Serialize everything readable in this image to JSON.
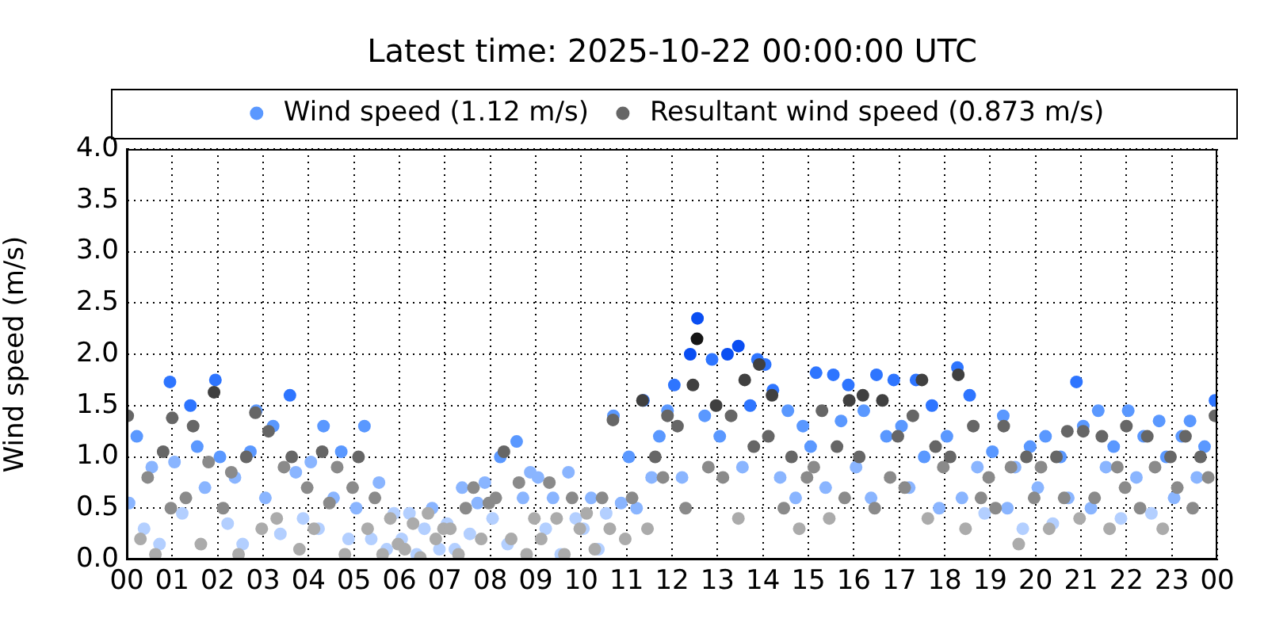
{
  "chart_data": {
    "type": "scatter",
    "title": "Latest time: 2025-10-22 00:00:00 UTC",
    "ylabel": "Wind speed (m/s)",
    "legend": "top",
    "grid": true,
    "marker": "circle",
    "xlim": [
      0,
      24
    ],
    "xticks": [
      {
        "value": 0,
        "label": "00"
      },
      {
        "value": 1,
        "label": "01"
      },
      {
        "value": 2,
        "label": "02"
      },
      {
        "value": 3,
        "label": "03"
      },
      {
        "value": 4,
        "label": "04"
      },
      {
        "value": 5,
        "label": "05"
      },
      {
        "value": 6,
        "label": "06"
      },
      {
        "value": 7,
        "label": "07"
      },
      {
        "value": 8,
        "label": "08"
      },
      {
        "value": 9,
        "label": "09"
      },
      10,
      11,
      12,
      13,
      14,
      15,
      16,
      17,
      18,
      19,
      20,
      21,
      22,
      23,
      {
        "value": 24,
        "label": "00"
      }
    ],
    "ylim": [
      0,
      4
    ],
    "yticks": [
      {
        "value": 0,
        "label": "0.0"
      },
      0.5,
      {
        "value": 1,
        "label": "1.0"
      },
      1.5,
      {
        "value": 2,
        "label": "2.0"
      },
      2.5,
      {
        "value": 3,
        "label": "3.0"
      },
      3.5,
      {
        "value": 4,
        "label": "4.0"
      }
    ],
    "series": [
      {
        "name": "Wind speed (1.12 m/s)",
        "color": "#5a98ff",
        "x": [
          0.05,
          0.22,
          0.38,
          0.55,
          0.72,
          0.95,
          1.05,
          1.22,
          1.4,
          1.55,
          1.72,
          1.95,
          2.05,
          2.22,
          2.38,
          2.55,
          2.72,
          2.85,
          3.05,
          3.22,
          3.38,
          3.59,
          3.72,
          3.88,
          4.05,
          4.22,
          4.33,
          4.55,
          4.72,
          4.88,
          5.05,
          5.23,
          5.38,
          5.55,
          5.72,
          5.88,
          6.05,
          6.22,
          6.38,
          6.55,
          6.72,
          6.88,
          7.05,
          7.22,
          7.38,
          7.55,
          7.72,
          7.88,
          8.05,
          8.22,
          8.38,
          8.58,
          8.72,
          8.88,
          9.05,
          9.22,
          9.38,
          9.55,
          9.72,
          9.88,
          10.05,
          10.22,
          10.38,
          10.55,
          10.71,
          10.88,
          11.05,
          11.22,
          11.37,
          11.55,
          11.72,
          11.9,
          12.05,
          12.22,
          12.4,
          12.56,
          12.72,
          12.88,
          13.05,
          13.22,
          13.46,
          13.55,
          13.72,
          13.88,
          14.05,
          14.22,
          14.38,
          14.55,
          14.72,
          14.88,
          15.05,
          15.17,
          15.38,
          15.55,
          15.72,
          15.88,
          16.05,
          16.22,
          16.38,
          16.5,
          16.72,
          16.88,
          17.05,
          17.22,
          17.37,
          17.55,
          17.72,
          17.88,
          18.05,
          18.28,
          18.38,
          18.55,
          18.72,
          18.88,
          19.05,
          19.29,
          19.38,
          19.55,
          19.72,
          19.88,
          20.05,
          20.22,
          20.38,
          20.55,
          20.72,
          20.9,
          21.05,
          21.22,
          21.38,
          21.55,
          21.72,
          21.88,
          22.04,
          22.22,
          22.38,
          22.55,
          22.72,
          22.88,
          23.05,
          23.22,
          23.4,
          23.55,
          23.72,
          23.95
        ],
        "values": [
          0.55,
          1.2,
          0.3,
          0.9,
          0.15,
          1.73,
          0.95,
          0.45,
          1.5,
          1.1,
          0.7,
          1.75,
          1.0,
          0.35,
          0.8,
          0.15,
          1.05,
          1.45,
          0.6,
          1.3,
          0.25,
          1.6,
          0.85,
          0.4,
          0.95,
          0.3,
          1.3,
          0.6,
          1.05,
          0.2,
          0.5,
          1.3,
          0.2,
          0.75,
          0.1,
          0.45,
          0.2,
          0.45,
          0.05,
          0.3,
          0.5,
          0.1,
          0.35,
          0.1,
          0.7,
          0.25,
          0.55,
          0.75,
          0.4,
          1.0,
          0.15,
          1.15,
          0.6,
          0.85,
          0.8,
          0.3,
          0.6,
          0.05,
          0.85,
          0.4,
          0.3,
          0.6,
          0.1,
          0.45,
          1.4,
          0.55,
          1.0,
          0.5,
          1.55,
          0.8,
          1.2,
          1.45,
          1.7,
          0.8,
          2.0,
          2.35,
          1.4,
          1.95,
          1.2,
          2.0,
          2.08,
          0.9,
          1.5,
          1.95,
          1.9,
          1.65,
          0.8,
          1.45,
          0.6,
          1.3,
          1.1,
          1.82,
          0.7,
          1.8,
          1.35,
          1.7,
          0.9,
          1.45,
          0.6,
          1.8,
          1.2,
          1.75,
          1.3,
          0.7,
          1.75,
          1.0,
          1.5,
          0.5,
          1.2,
          1.87,
          0.6,
          1.6,
          0.9,
          0.45,
          1.05,
          1.4,
          0.5,
          0.9,
          0.3,
          1.1,
          0.7,
          1.2,
          0.35,
          1.0,
          0.6,
          1.73,
          1.3,
          0.5,
          1.45,
          0.9,
          1.1,
          0.4,
          1.45,
          0.8,
          1.2,
          0.45,
          1.35,
          1.0,
          0.6,
          1.2,
          1.35,
          0.8,
          1.1,
          1.55
        ],
        "colors": [
          "#8ab5ff",
          "#5a98ff",
          "#b3cfff",
          "#8ab5ff",
          "#b3cfff",
          "#2e75ff",
          "#8ab5ff",
          "#b3cfff",
          "#2e75ff",
          "#5a98ff",
          "#8ab5ff",
          "#2e75ff",
          "#5a98ff",
          "#b3cfff",
          "#8ab5ff",
          "#b3cfff",
          "#5a98ff",
          "#5a98ff",
          "#8ab5ff",
          "#5a98ff",
          "#b3cfff",
          "#2e75ff",
          "#8ab5ff",
          "#b3cfff",
          "#8ab5ff",
          "#b3cfff",
          "#5a98ff",
          "#8ab5ff",
          "#5a98ff",
          "#b3cfff",
          "#8ab5ff",
          "#5a98ff",
          "#b3cfff",
          "#8ab5ff",
          "#b3cfff",
          "#b3cfff",
          "#b3cfff",
          "#b3cfff",
          "#b3cfff",
          "#b3cfff",
          "#8ab5ff",
          "#b3cfff",
          "#b3cfff",
          "#b3cfff",
          "#8ab5ff",
          "#b3cfff",
          "#8ab5ff",
          "#8ab5ff",
          "#b3cfff",
          "#5a98ff",
          "#b3cfff",
          "#5a98ff",
          "#8ab5ff",
          "#8ab5ff",
          "#8ab5ff",
          "#b3cfff",
          "#8ab5ff",
          "#b3cfff",
          "#8ab5ff",
          "#b3cfff",
          "#b3cfff",
          "#8ab5ff",
          "#b3cfff",
          "#b3cfff",
          "#5a98ff",
          "#8ab5ff",
          "#5a98ff",
          "#8ab5ff",
          "#2e75ff",
          "#8ab5ff",
          "#5a98ff",
          "#5a98ff",
          "#2e75ff",
          "#8ab5ff",
          "#0a4ef2",
          "#0a4ef2",
          "#5a98ff",
          "#2e75ff",
          "#5a98ff",
          "#0a4ef2",
          "#0a4ef2",
          "#8ab5ff",
          "#2e75ff",
          "#2e75ff",
          "#2e75ff",
          "#2e75ff",
          "#8ab5ff",
          "#5a98ff",
          "#8ab5ff",
          "#5a98ff",
          "#5a98ff",
          "#2e75ff",
          "#8ab5ff",
          "#2e75ff",
          "#5a98ff",
          "#2e75ff",
          "#8ab5ff",
          "#5a98ff",
          "#8ab5ff",
          "#2e75ff",
          "#5a98ff",
          "#2e75ff",
          "#5a98ff",
          "#8ab5ff",
          "#2e75ff",
          "#5a98ff",
          "#2e75ff",
          "#8ab5ff",
          "#5a98ff",
          "#2e75ff",
          "#8ab5ff",
          "#2e75ff",
          "#8ab5ff",
          "#b3cfff",
          "#5a98ff",
          "#5a98ff",
          "#8ab5ff",
          "#8ab5ff",
          "#b3cfff",
          "#5a98ff",
          "#8ab5ff",
          "#5a98ff",
          "#b3cfff",
          "#5a98ff",
          "#8ab5ff",
          "#2e75ff",
          "#5a98ff",
          "#8ab5ff",
          "#5a98ff",
          "#8ab5ff",
          "#5a98ff",
          "#b3cfff",
          "#5a98ff",
          "#8ab5ff",
          "#5a98ff",
          "#b3cfff",
          "#5a98ff",
          "#5a98ff",
          "#8ab5ff",
          "#5a98ff",
          "#5a98ff",
          "#8ab5ff",
          "#5a98ff",
          "#2e75ff"
        ]
      },
      {
        "name": "Resultant wind speed (0.873 m/s)",
        "color": "#666666",
        "x": [
          0.02,
          0.3,
          0.46,
          0.63,
          0.8,
          0.97,
          1.0,
          1.3,
          1.46,
          1.63,
          1.8,
          1.92,
          2.12,
          2.3,
          2.46,
          2.63,
          2.83,
          2.97,
          3.12,
          3.3,
          3.46,
          3.63,
          3.8,
          3.97,
          4.12,
          4.3,
          4.46,
          4.63,
          4.8,
          4.97,
          5.1,
          5.3,
          5.46,
          5.63,
          5.8,
          5.97,
          6.12,
          6.3,
          6.46,
          6.63,
          6.8,
          6.97,
          7.12,
          7.3,
          7.46,
          7.63,
          7.8,
          7.97,
          8.12,
          8.3,
          8.46,
          8.63,
          8.8,
          8.97,
          9.12,
          9.3,
          9.46,
          9.63,
          9.8,
          9.97,
          10.12,
          10.3,
          10.46,
          10.63,
          10.7,
          10.97,
          11.12,
          11.35,
          11.46,
          11.63,
          11.8,
          11.9,
          12.12,
          12.3,
          12.46,
          12.55,
          12.8,
          12.97,
          13.12,
          13.3,
          13.46,
          13.6,
          13.8,
          13.92,
          14.12,
          14.2,
          14.46,
          14.63,
          14.8,
          14.97,
          15.12,
          15.3,
          15.46,
          15.63,
          15.8,
          15.9,
          16.12,
          16.2,
          16.46,
          16.63,
          16.8,
          16.97,
          17.12,
          17.3,
          17.5,
          17.63,
          17.8,
          17.97,
          18.12,
          18.3,
          18.46,
          18.63,
          18.8,
          18.97,
          19.12,
          19.3,
          19.46,
          19.63,
          19.8,
          19.97,
          20.12,
          20.3,
          20.46,
          20.63,
          20.7,
          20.97,
          21.05,
          21.3,
          21.46,
          21.63,
          21.8,
          21.97,
          22.0,
          22.3,
          22.46,
          22.63,
          22.8,
          22.97,
          23.12,
          23.3,
          23.46,
          23.63,
          23.8,
          23.95
        ],
        "values": [
          1.4,
          0.2,
          0.8,
          0.05,
          1.05,
          0.5,
          1.38,
          0.6,
          1.3,
          0.15,
          0.95,
          1.63,
          0.5,
          0.85,
          0.05,
          1.0,
          1.43,
          0.3,
          1.25,
          0.4,
          0.9,
          1.0,
          0.1,
          0.7,
          0.3,
          1.05,
          0.55,
          0.9,
          0.05,
          0.7,
          1.0,
          0.3,
          0.6,
          0.05,
          0.4,
          0.15,
          0.1,
          0.35,
          0.02,
          0.45,
          0.2,
          0.3,
          0.3,
          0.05,
          0.5,
          0.7,
          0.2,
          0.55,
          0.6,
          1.05,
          0.2,
          0.75,
          0.05,
          0.4,
          0.2,
          0.75,
          0.4,
          0.05,
          0.6,
          0.3,
          0.45,
          0.1,
          0.6,
          0.3,
          1.36,
          0.2,
          0.6,
          1.55,
          0.3,
          1.0,
          0.8,
          1.4,
          1.3,
          0.5,
          1.7,
          2.15,
          0.9,
          1.5,
          0.8,
          1.4,
          0.4,
          1.75,
          1.1,
          1.9,
          1.2,
          1.6,
          0.5,
          1.0,
          0.3,
          0.8,
          0.9,
          1.45,
          0.4,
          1.1,
          0.6,
          1.55,
          1.0,
          1.6,
          0.5,
          1.55,
          0.8,
          1.2,
          0.7,
          1.4,
          1.75,
          0.4,
          1.1,
          0.9,
          1.0,
          1.8,
          0.3,
          1.3,
          0.6,
          0.8,
          0.5,
          1.3,
          0.9,
          0.15,
          1.0,
          0.6,
          0.9,
          0.3,
          1.0,
          0.6,
          1.25,
          0.4,
          1.25,
          0.6,
          1.2,
          0.3,
          0.9,
          0.7,
          1.3,
          0.5,
          1.2,
          0.9,
          0.3,
          1.0,
          0.7,
          1.2,
          0.5,
          1.0,
          0.8,
          1.4
        ],
        "colors": [
          "#666666",
          "#ababab",
          "#8a8a8a",
          "#ababab",
          "#666666",
          "#8a8a8a",
          "#666666",
          "#8a8a8a",
          "#666666",
          "#ababab",
          "#8a8a8a",
          "#404040",
          "#8a8a8a",
          "#8a8a8a",
          "#ababab",
          "#666666",
          "#666666",
          "#ababab",
          "#666666",
          "#ababab",
          "#8a8a8a",
          "#666666",
          "#ababab",
          "#8a8a8a",
          "#ababab",
          "#666666",
          "#8a8a8a",
          "#8a8a8a",
          "#ababab",
          "#8a8a8a",
          "#666666",
          "#ababab",
          "#8a8a8a",
          "#ababab",
          "#ababab",
          "#ababab",
          "#ababab",
          "#ababab",
          "#ababab",
          "#ababab",
          "#ababab",
          "#ababab",
          "#ababab",
          "#ababab",
          "#8a8a8a",
          "#8a8a8a",
          "#ababab",
          "#8a8a8a",
          "#8a8a8a",
          "#666666",
          "#ababab",
          "#8a8a8a",
          "#ababab",
          "#ababab",
          "#ababab",
          "#8a8a8a",
          "#ababab",
          "#ababab",
          "#8a8a8a",
          "#ababab",
          "#ababab",
          "#ababab",
          "#8a8a8a",
          "#ababab",
          "#666666",
          "#ababab",
          "#8a8a8a",
          "#404040",
          "#ababab",
          "#666666",
          "#8a8a8a",
          "#666666",
          "#666666",
          "#8a8a8a",
          "#404040",
          "#151515",
          "#8a8a8a",
          "#404040",
          "#8a8a8a",
          "#666666",
          "#ababab",
          "#404040",
          "#666666",
          "#404040",
          "#666666",
          "#404040",
          "#8a8a8a",
          "#666666",
          "#ababab",
          "#8a8a8a",
          "#8a8a8a",
          "#666666",
          "#ababab",
          "#666666",
          "#8a8a8a",
          "#404040",
          "#666666",
          "#404040",
          "#8a8a8a",
          "#404040",
          "#8a8a8a",
          "#666666",
          "#8a8a8a",
          "#666666",
          "#404040",
          "#ababab",
          "#666666",
          "#8a8a8a",
          "#666666",
          "#404040",
          "#ababab",
          "#666666",
          "#8a8a8a",
          "#8a8a8a",
          "#8a8a8a",
          "#666666",
          "#8a8a8a",
          "#ababab",
          "#666666",
          "#8a8a8a",
          "#8a8a8a",
          "#ababab",
          "#666666",
          "#8a8a8a",
          "#666666",
          "#ababab",
          "#666666",
          "#8a8a8a",
          "#666666",
          "#ababab",
          "#8a8a8a",
          "#8a8a8a",
          "#666666",
          "#8a8a8a",
          "#666666",
          "#8a8a8a",
          "#ababab",
          "#666666",
          "#8a8a8a",
          "#666666",
          "#8a8a8a",
          "#666666",
          "#8a8a8a",
          "#666666"
        ]
      }
    ]
  }
}
